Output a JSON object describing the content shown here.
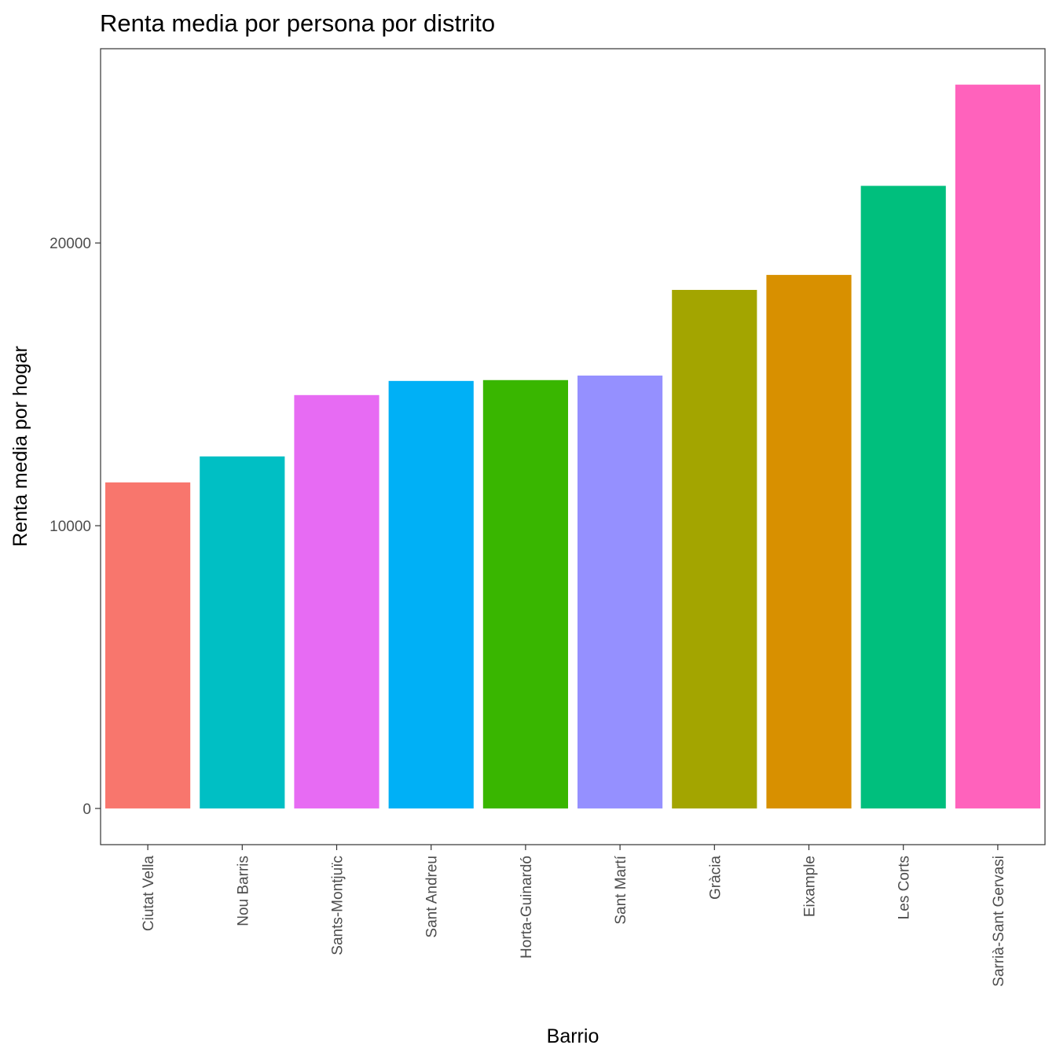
{
  "chart_data": {
    "type": "bar",
    "title": "Renta media por persona por distrito",
    "xlabel": "Barrio",
    "ylabel": "Renta media por hogar",
    "categories": [
      "Ciutat Vella",
      "Nou Barris",
      "Sants-Montjuïc",
      "Sant Andreu",
      "Horta-Guinardó",
      "Sant Martí",
      "Gràcia",
      "Eixample",
      "Les Corts",
      "Sarrià-Sant Gervasi"
    ],
    "values": [
      11530,
      12450,
      14620,
      15120,
      15150,
      15310,
      18340,
      18870,
      22020,
      25600
    ],
    "colors": [
      "#F8766D",
      "#00BFC4",
      "#E76BF3",
      "#00B0F6",
      "#39B600",
      "#9590FF",
      "#A3A500",
      "#D89000",
      "#00BF7D",
      "#FF62BC"
    ],
    "yticks": [
      0,
      10000,
      20000
    ],
    "ylim": [
      -1280,
      26870
    ],
    "grid": false,
    "legend": "none"
  }
}
